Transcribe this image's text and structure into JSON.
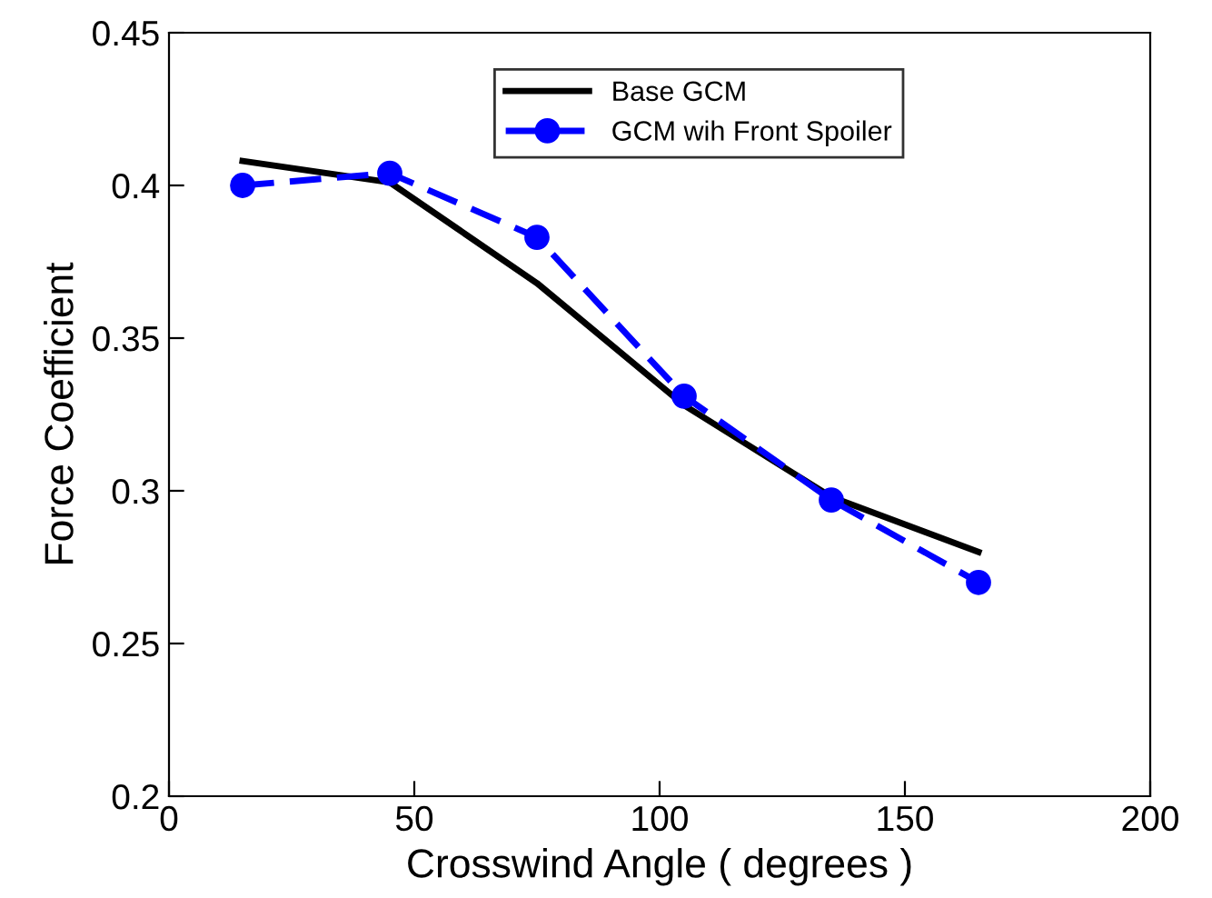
{
  "chart_data": {
    "type": "line",
    "xlabel": "Crosswind Angle ( degrees )",
    "ylabel": "Force Coefficient",
    "xlim": [
      0,
      200
    ],
    "xticks": [
      0,
      50,
      100,
      150,
      200
    ],
    "ylim": [
      0.2,
      0.45
    ],
    "yticks": [
      0.2,
      0.25,
      0.3,
      0.35,
      0.4,
      0.45
    ],
    "grid": false,
    "legend": "top",
    "series": [
      {
        "name": "Base GCM",
        "color": "#000000",
        "marker": "none",
        "line_style": "solid",
        "x": [
          15,
          45,
          75,
          105,
          135,
          165
        ],
        "values": [
          0.408,
          0.401,
          0.368,
          0.328,
          0.298,
          0.28
        ]
      },
      {
        "name": "GCM wih Front Spoiler",
        "color": "#0000ff",
        "marker": "circle",
        "line_style": "dashed",
        "x": [
          15,
          45,
          75,
          105,
          135,
          165
        ],
        "values": [
          0.4,
          0.404,
          0.383,
          0.331,
          0.297,
          0.27
        ]
      }
    ]
  }
}
